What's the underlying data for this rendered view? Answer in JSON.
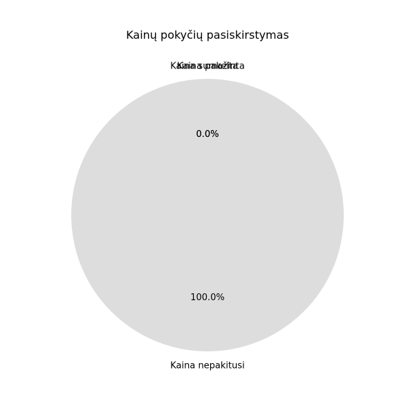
{
  "chart_data": {
    "type": "pie",
    "title": "Kainų pokyčių pasiskirstymas",
    "slices": [
      {
        "label": "Kaina sumažinta",
        "value": 0,
        "percent_label": "0.0%",
        "color": "#dddddd"
      },
      {
        "label": "Kaina pakelta",
        "value": 0,
        "percent_label": "0.0%",
        "color": "#dddddd"
      },
      {
        "label": "Kaina nepakitusi",
        "value": 100,
        "percent_label": "100.0%",
        "color": "#dddddd"
      }
    ]
  }
}
